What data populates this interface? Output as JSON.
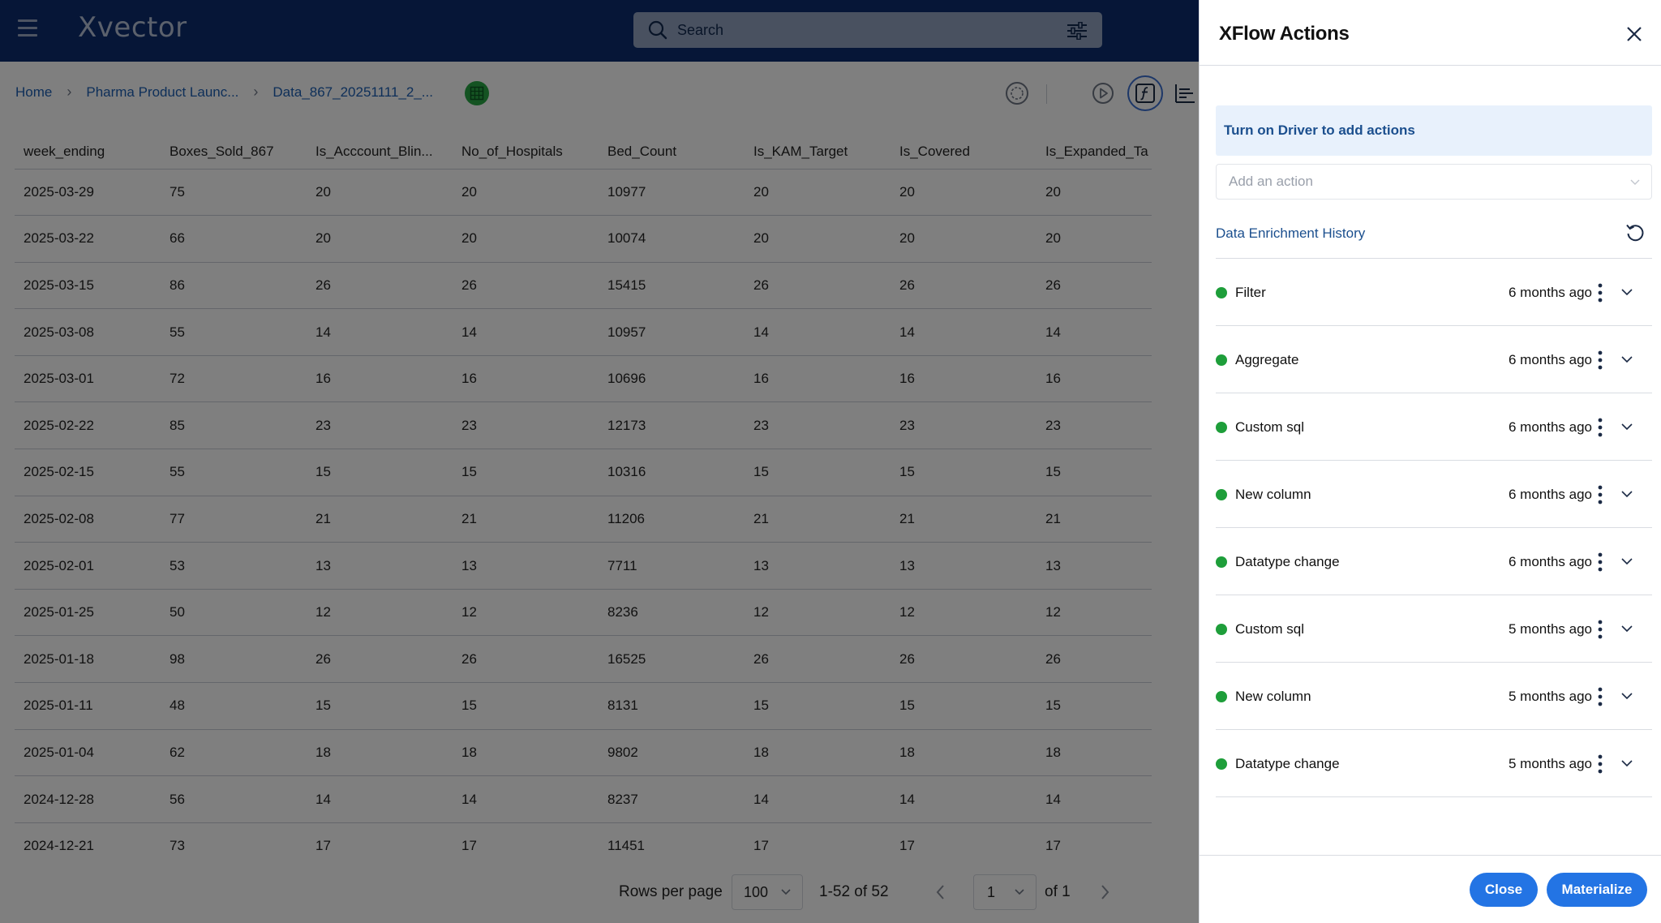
{
  "app": {
    "logo": "Xvector"
  },
  "search": {
    "placeholder": "Search"
  },
  "breadcrumb": {
    "home": "Home",
    "project": "Pharma Product Launc...",
    "dataset": "Data_867_20251111_2_..."
  },
  "table": {
    "columns": [
      "week_ending",
      "Boxes_Sold_867",
      "Is_Acccount_Blin...",
      "No_of_Hospitals",
      "Bed_Count",
      "Is_KAM_Target",
      "Is_Covered",
      "Is_Expanded_Ta"
    ],
    "rows": [
      [
        "2025-03-29",
        "75",
        "20",
        "20",
        "10977",
        "20",
        "20",
        "20"
      ],
      [
        "2025-03-22",
        "66",
        "20",
        "20",
        "10074",
        "20",
        "20",
        "20"
      ],
      [
        "2025-03-15",
        "86",
        "26",
        "26",
        "15415",
        "26",
        "26",
        "26"
      ],
      [
        "2025-03-08",
        "55",
        "14",
        "14",
        "10957",
        "14",
        "14",
        "14"
      ],
      [
        "2025-03-01",
        "72",
        "16",
        "16",
        "10696",
        "16",
        "16",
        "16"
      ],
      [
        "2025-02-22",
        "85",
        "23",
        "23",
        "12173",
        "23",
        "23",
        "23"
      ],
      [
        "2025-02-15",
        "55",
        "15",
        "15",
        "10316",
        "15",
        "15",
        "15"
      ],
      [
        "2025-02-08",
        "77",
        "21",
        "21",
        "11206",
        "21",
        "21",
        "21"
      ],
      [
        "2025-02-01",
        "53",
        "13",
        "13",
        "7711",
        "13",
        "13",
        "13"
      ],
      [
        "2025-01-25",
        "50",
        "12",
        "12",
        "8236",
        "12",
        "12",
        "12"
      ],
      [
        "2025-01-18",
        "98",
        "26",
        "26",
        "16525",
        "26",
        "26",
        "26"
      ],
      [
        "2025-01-11",
        "48",
        "15",
        "15",
        "8131",
        "15",
        "15",
        "15"
      ],
      [
        "2025-01-04",
        "62",
        "18",
        "18",
        "9802",
        "18",
        "18",
        "18"
      ],
      [
        "2024-12-28",
        "56",
        "14",
        "14",
        "8237",
        "14",
        "14",
        "14"
      ],
      [
        "2024-12-21",
        "73",
        "17",
        "17",
        "11451",
        "17",
        "17",
        "17"
      ]
    ]
  },
  "pagination": {
    "rows_per_page_label": "Rows per page",
    "rows_per_page": "100",
    "range": "1-52 of 52",
    "page": "1",
    "of_pages": "of 1"
  },
  "panel": {
    "title": "XFlow Actions",
    "driver_banner": "Turn on Driver to add actions",
    "add_action_placeholder": "Add an action",
    "history_title": "Data Enrichment History",
    "history": [
      {
        "name": "Filter",
        "time": "6 months ago"
      },
      {
        "name": "Aggregate",
        "time": "6 months ago"
      },
      {
        "name": "Custom sql",
        "time": "6 months ago"
      },
      {
        "name": "New column",
        "time": "6 months ago"
      },
      {
        "name": "Datatype change",
        "time": "6 months ago"
      },
      {
        "name": "Custom sql",
        "time": "5 months ago"
      },
      {
        "name": "New column",
        "time": "5 months ago"
      },
      {
        "name": "Datatype change",
        "time": "5 months ago"
      }
    ],
    "close_label": "Close",
    "materialize_label": "Materialize"
  },
  "colors": {
    "topbar": "#0d2d6e",
    "accent": "#2374e4",
    "status_dot": "#1e9e3a",
    "link": "#1b4f8e",
    "banner_bg": "#e8f1fc"
  },
  "icons": {
    "menu": "hamburger-menu-icon",
    "search": "search-icon",
    "filter": "sliders-icon",
    "dataset": "grid-icon",
    "close": "close-icon",
    "refresh": "refresh-icon",
    "kebab": "kebab-icon",
    "expand": "chevron-down-icon"
  }
}
